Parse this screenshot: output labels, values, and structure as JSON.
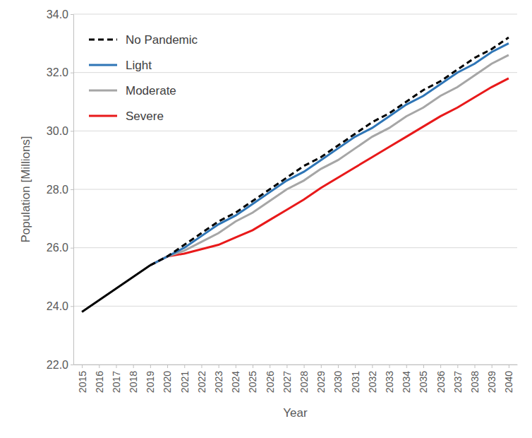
{
  "chart_data": {
    "type": "line",
    "x_label": "Year",
    "y_label": "Population [Millions]",
    "x": [
      2015,
      2016,
      2017,
      2018,
      2019,
      2020,
      2021,
      2022,
      2023,
      2024,
      2025,
      2026,
      2027,
      2028,
      2029,
      2030,
      2031,
      2032,
      2033,
      2034,
      2035,
      2036,
      2037,
      2038,
      2039,
      2040
    ],
    "xlim": [
      2014.5,
      2040.5
    ],
    "xticks": [
      2015,
      2016,
      2017,
      2018,
      2019,
      2020,
      2021,
      2022,
      2023,
      2024,
      2025,
      2026,
      2027,
      2028,
      2029,
      2030,
      2031,
      2032,
      2033,
      2034,
      2035,
      2036,
      2037,
      2038,
      2039,
      2040
    ],
    "ylim": [
      22,
      34
    ],
    "yticks": [
      {
        "value": 22,
        "label": "22.0"
      },
      {
        "value": 24,
        "label": "24.0"
      },
      {
        "value": 26,
        "label": "26.0"
      },
      {
        "value": 28,
        "label": "28.0"
      },
      {
        "value": 30,
        "label": "30.0"
      },
      {
        "value": 32,
        "label": "32.0"
      },
      {
        "value": 34,
        "label": "34.0"
      }
    ],
    "grid": true,
    "legend": "upper left",
    "series": [
      {
        "color": "#000000",
        "line_style": "solid",
        "values": [
          23.8,
          24.2,
          24.6,
          25.0,
          25.4,
          null,
          null,
          null,
          null,
          null,
          null,
          null,
          null,
          null,
          null,
          null,
          null,
          null,
          null,
          null,
          null,
          null,
          null,
          null,
          null,
          null
        ]
      },
      {
        "name": "No Pandemic",
        "color": "#000000",
        "line_style": "dashed",
        "values": [
          null,
          null,
          null,
          null,
          25.4,
          25.7,
          26.1,
          26.5,
          26.9,
          27.2,
          27.6,
          28.0,
          28.4,
          28.8,
          29.1,
          29.5,
          29.9,
          30.3,
          30.6,
          31.0,
          31.4,
          31.7,
          32.1,
          32.5,
          32.8,
          33.2
        ]
      },
      {
        "name": "Light",
        "color": "#2e75b6",
        "line_style": "solid",
        "values": [
          null,
          null,
          null,
          null,
          25.4,
          25.7,
          26.0,
          26.4,
          26.8,
          27.1,
          27.5,
          27.9,
          28.3,
          28.6,
          29.0,
          29.4,
          29.8,
          30.1,
          30.5,
          30.9,
          31.2,
          31.6,
          32.0,
          32.3,
          32.7,
          33.0
        ]
      },
      {
        "name": "Moderate",
        "color": "#a6a6a6",
        "line_style": "solid",
        "values": [
          null,
          null,
          null,
          null,
          25.4,
          25.7,
          25.9,
          26.2,
          26.5,
          26.9,
          27.2,
          27.6,
          28.0,
          28.3,
          28.7,
          29.0,
          29.4,
          29.8,
          30.1,
          30.5,
          30.8,
          31.2,
          31.5,
          31.9,
          32.3,
          32.6
        ]
      },
      {
        "name": "Severe",
        "color": "#e8191a",
        "line_style": "solid",
        "values": [
          null,
          null,
          null,
          null,
          25.4,
          25.7,
          25.8,
          25.95,
          26.1,
          26.35,
          26.6,
          26.95,
          27.3,
          27.65,
          28.05,
          28.4,
          28.75,
          29.1,
          29.45,
          29.8,
          30.15,
          30.5,
          30.8,
          31.15,
          31.5,
          31.8
        ]
      }
    ]
  }
}
